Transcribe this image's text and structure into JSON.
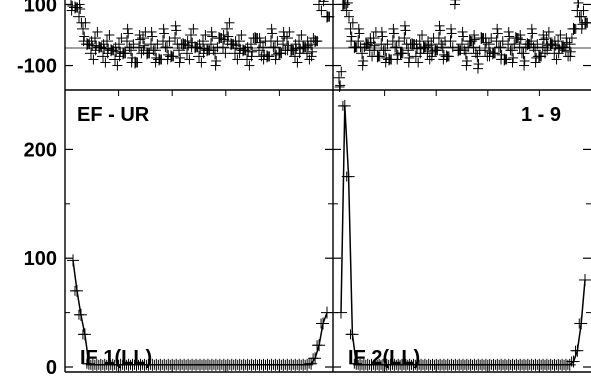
{
  "chart_data": [
    {
      "type": "scatter",
      "panel": "phase-left",
      "y_ticks": [
        {
          "value": 100,
          "label": "100"
        },
        {
          "value": -100,
          "label": "-100"
        }
      ],
      "ylim": [
        -180,
        180
      ],
      "x_range": [
        0,
        64
      ],
      "marker": "+",
      "points_sampled": [
        [
          0,
          120
        ],
        [
          1,
          90
        ],
        [
          2,
          60
        ],
        [
          3,
          20
        ],
        [
          4,
          -30
        ],
        [
          5,
          -60
        ],
        [
          6,
          -10
        ],
        [
          7,
          -40
        ],
        [
          8,
          -70
        ],
        [
          9,
          -20
        ],
        [
          10,
          -50
        ],
        [
          11,
          -80
        ],
        [
          12,
          -30
        ],
        [
          13,
          -60
        ],
        [
          14,
          -20
        ],
        [
          15,
          -50
        ],
        [
          16,
          -90
        ],
        [
          17,
          -40
        ],
        [
          18,
          -10
        ],
        [
          19,
          -60
        ],
        [
          20,
          -30
        ],
        [
          21,
          -50
        ],
        [
          22,
          -80
        ],
        [
          23,
          -20
        ],
        [
          24,
          -40
        ],
        [
          25,
          -70
        ],
        [
          26,
          -10
        ],
        [
          27,
          -50
        ],
        [
          28,
          -30
        ],
        [
          29,
          -60
        ],
        [
          30,
          0
        ],
        [
          31,
          -40
        ],
        [
          32,
          -70
        ],
        [
          33,
          -20
        ],
        [
          34,
          -50
        ],
        [
          35,
          -30
        ],
        [
          36,
          -60
        ],
        [
          37,
          -10
        ],
        [
          38,
          -40
        ],
        [
          39,
          20
        ],
        [
          40,
          -30
        ],
        [
          41,
          -60
        ],
        [
          42,
          -20
        ],
        [
          43,
          -50
        ],
        [
          44,
          -80
        ],
        [
          45,
          -30
        ],
        [
          46,
          -10
        ],
        [
          47,
          -50
        ],
        [
          48,
          -40
        ],
        [
          49,
          -70
        ],
        [
          50,
          -20
        ],
        [
          51,
          -40
        ],
        [
          52,
          -60
        ],
        [
          53,
          -30
        ],
        [
          54,
          -10
        ],
        [
          55,
          -50
        ],
        [
          56,
          -70
        ],
        [
          57,
          -20
        ],
        [
          58,
          -40
        ],
        [
          59,
          -60
        ],
        [
          60,
          -30
        ],
        [
          61,
          -20
        ],
        [
          62,
          100
        ],
        [
          63,
          150
        ],
        [
          64,
          60
        ]
      ]
    },
    {
      "type": "scatter",
      "panel": "phase-right",
      "ylim": [
        -180,
        180
      ],
      "x_range": [
        0,
        64
      ],
      "marker": "+",
      "points_sampled": [
        [
          0,
          -140
        ],
        [
          1,
          100
        ],
        [
          2,
          80
        ],
        [
          3,
          20
        ],
        [
          4,
          -40
        ],
        [
          5,
          -20
        ],
        [
          6,
          -60
        ],
        [
          7,
          -30
        ],
        [
          8,
          -50
        ],
        [
          9,
          -10
        ],
        [
          10,
          -70
        ],
        [
          11,
          -30
        ],
        [
          12,
          -50
        ],
        [
          13,
          -80
        ],
        [
          14,
          -20
        ],
        [
          15,
          -40
        ],
        [
          16,
          -60
        ],
        [
          17,
          -10
        ],
        [
          18,
          -50
        ],
        [
          19,
          -30
        ],
        [
          20,
          -70
        ],
        [
          21,
          -20
        ],
        [
          22,
          -40
        ],
        [
          23,
          -60
        ],
        [
          24,
          -30
        ],
        [
          25,
          -50
        ],
        [
          26,
          -10
        ],
        [
          27,
          -40
        ],
        [
          28,
          -70
        ],
        [
          29,
          -20
        ],
        [
          30,
          140
        ],
        [
          31,
          -50
        ],
        [
          32,
          -30
        ],
        [
          33,
          -60
        ],
        [
          34,
          -20
        ],
        [
          35,
          -40
        ],
        [
          36,
          -70
        ],
        [
          37,
          -10
        ],
        [
          38,
          -50
        ],
        [
          39,
          -30
        ],
        [
          40,
          -60
        ],
        [
          41,
          -20
        ],
        [
          42,
          -40
        ],
        [
          43,
          -80
        ],
        [
          44,
          -30
        ],
        [
          45,
          -50
        ],
        [
          46,
          -10
        ],
        [
          47,
          -40
        ],
        [
          48,
          -60
        ],
        [
          49,
          -30
        ],
        [
          50,
          -20
        ],
        [
          51,
          -50
        ],
        [
          52,
          -70
        ],
        [
          53,
          -40
        ],
        [
          54,
          -10
        ],
        [
          55,
          -30
        ],
        [
          56,
          -60
        ],
        [
          57,
          -20
        ],
        [
          58,
          -40
        ],
        [
          59,
          -50
        ],
        [
          60,
          -30
        ],
        [
          61,
          20
        ],
        [
          62,
          80
        ],
        [
          63,
          60
        ],
        [
          64,
          40
        ]
      ]
    },
    {
      "type": "line",
      "panel": "amplitude-left",
      "label_top": "EF - UR",
      "label_bottom": "IF 1(LL)",
      "y_ticks": [
        {
          "value": 200,
          "label": "200"
        },
        {
          "value": 100,
          "label": "100"
        },
        {
          "value": 0,
          "label": "0"
        }
      ],
      "ylim": [
        0,
        250
      ],
      "x_range": [
        0,
        64
      ],
      "marker": "+",
      "values": [
        98,
        70,
        48,
        30,
        3,
        2,
        2,
        2,
        2,
        2,
        2,
        2,
        2,
        2,
        2,
        2,
        2,
        2,
        2,
        2,
        2,
        2,
        2,
        2,
        2,
        2,
        2,
        2,
        2,
        2,
        2,
        2,
        2,
        2,
        2,
        2,
        2,
        2,
        2,
        2,
        2,
        2,
        2,
        2,
        2,
        2,
        2,
        2,
        2,
        2,
        2,
        2,
        2,
        2,
        2,
        2,
        2,
        2,
        2,
        2,
        3,
        8,
        20,
        40,
        50
      ]
    },
    {
      "type": "line",
      "panel": "amplitude-right",
      "label_top": "1 - 9",
      "label_bottom": "IF 2(LL)",
      "ylim": [
        0,
        250
      ],
      "x_range": [
        0,
        64
      ],
      "marker": "+",
      "values": [
        50,
        240,
        175,
        30,
        3,
        2,
        2,
        2,
        2,
        2,
        2,
        2,
        2,
        2,
        2,
        2,
        2,
        2,
        2,
        2,
        2,
        2,
        2,
        2,
        2,
        2,
        2,
        2,
        2,
        2,
        2,
        2,
        2,
        2,
        2,
        2,
        2,
        2,
        2,
        2,
        2,
        2,
        2,
        2,
        2,
        2,
        2,
        2,
        2,
        2,
        2,
        2,
        2,
        2,
        2,
        2,
        2,
        2,
        2,
        2,
        2,
        5,
        15,
        40,
        80
      ]
    }
  ]
}
